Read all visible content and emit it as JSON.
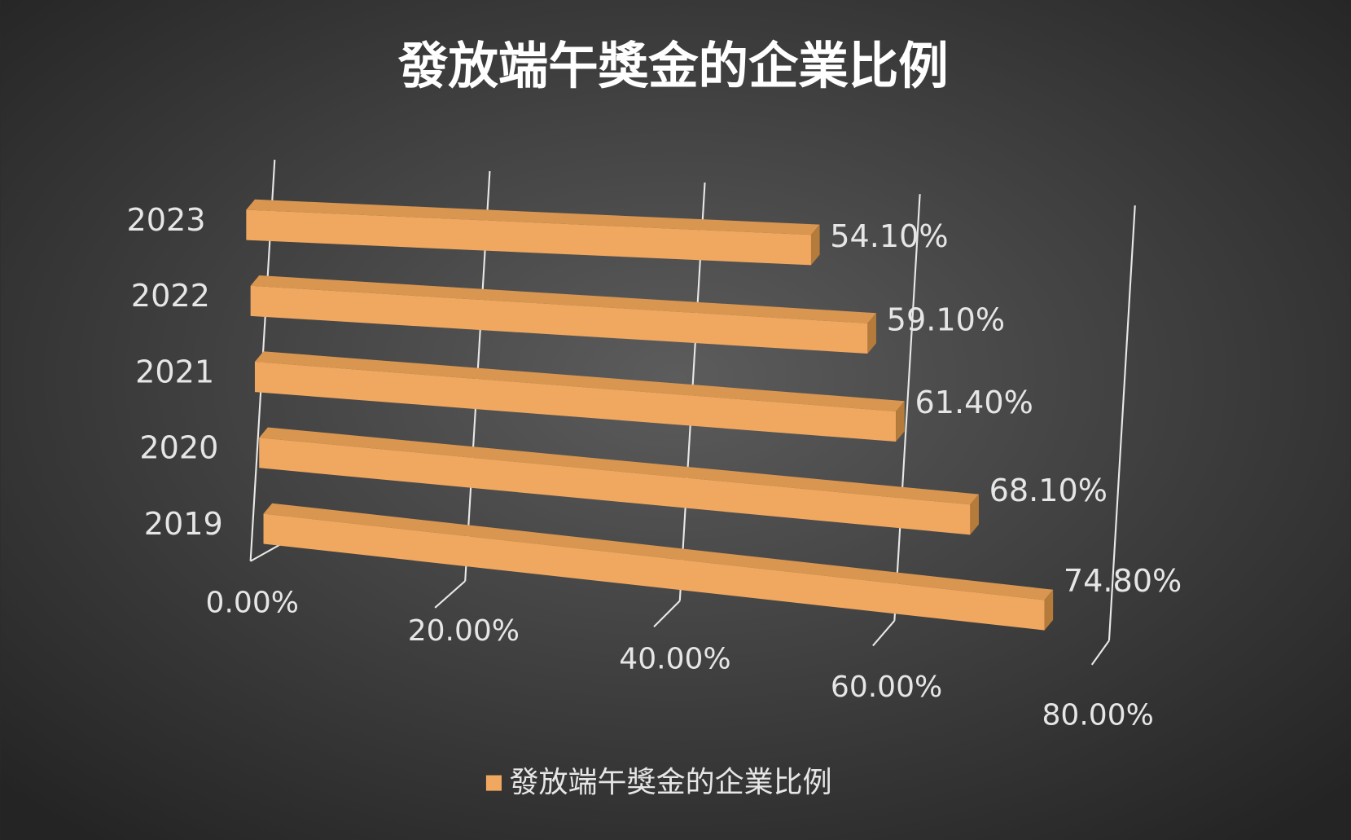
{
  "chart_data": {
    "type": "bar3d",
    "title": "發放端午獎金的企業比例",
    "categories": [
      "2019",
      "2020",
      "2021",
      "2022",
      "2023"
    ],
    "series": [
      {
        "name": "發放端午獎金的企業比例",
        "color": "#f0a860",
        "values": [
          74.8,
          68.1,
          61.4,
          59.1,
          54.1
        ],
        "value_labels": [
          "74.80%",
          "68.10%",
          "61.40%",
          "59.10%",
          "54.10%"
        ]
      }
    ],
    "xlim": [
      0,
      80
    ],
    "xticks": [
      {
        "value": 0,
        "label": "0.00%"
      },
      {
        "value": 20,
        "label": "20.00%"
      },
      {
        "value": 40,
        "label": "40.00%"
      },
      {
        "value": 60,
        "label": "60.00%"
      },
      {
        "value": 80,
        "label": "80.00%"
      }
    ],
    "grid": true,
    "legend": "bottom"
  }
}
